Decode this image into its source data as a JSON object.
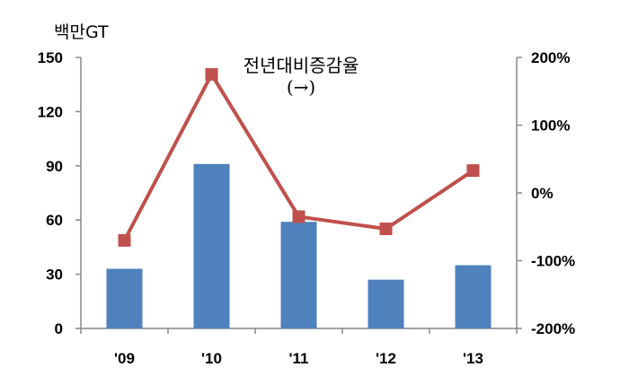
{
  "chart_data": {
    "type": "bar",
    "categories": [
      "'09",
      "'10",
      "'11",
      "'12",
      "'13"
    ],
    "left_axis": {
      "unit_label": "백만GT",
      "ylim": [
        0,
        150
      ],
      "ticks": [
        "0",
        "30",
        "60",
        "90",
        "120",
        "150"
      ]
    },
    "right_axis": {
      "ylim": [
        -200,
        200
      ],
      "ticks": [
        "-200%",
        "-100%",
        "0%",
        "100%",
        "200%"
      ]
    },
    "series": [
      {
        "type": "bar",
        "axis": "left",
        "values": [
          33,
          91,
          59,
          27,
          35
        ],
        "color": "#4f81bd"
      },
      {
        "type": "line",
        "axis": "right",
        "values": [
          -70,
          175,
          -35,
          -53,
          33
        ],
        "color": "#c0504d"
      }
    ],
    "annotation": {
      "line1": "전년대비증감율",
      "line2": "(→)"
    },
    "grid": false
  }
}
